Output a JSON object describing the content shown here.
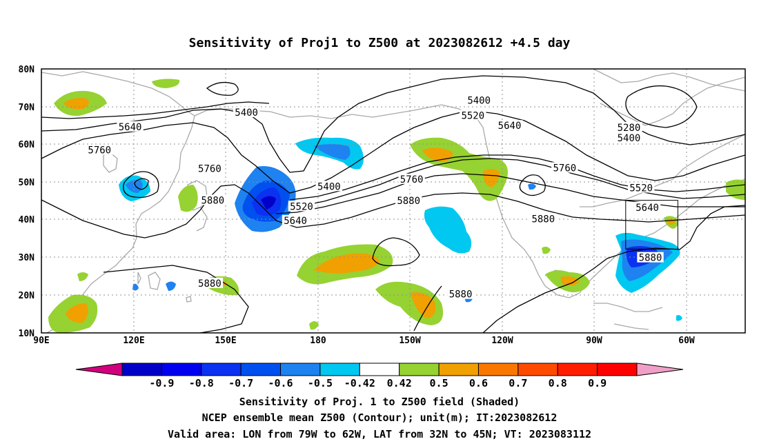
{
  "title": "Sensitivity of Proj1 to Z500 at 2023082612 +4.5 day",
  "axes": {
    "lat_labels": [
      "80N",
      "70N",
      "60N",
      "50N",
      "40N",
      "30N",
      "20N",
      "10N"
    ],
    "lon_labels": [
      "90E",
      "120E",
      "150E",
      "180",
      "150W",
      "120W",
      "90W",
      "60W"
    ]
  },
  "contour_labels": [
    {
      "text": "5400",
      "lat": 71.5,
      "lon": 233
    },
    {
      "text": "5400",
      "lat": 68.3,
      "lon": 157
    },
    {
      "text": "5520",
      "lat": 67.5,
      "lon": 231
    },
    {
      "text": "5640",
      "lat": 64.5,
      "lon": 119
    },
    {
      "text": "5640",
      "lat": 64.8,
      "lon": 243
    },
    {
      "text": "5280",
      "lat": 64.3,
      "lon": 282
    },
    {
      "text": "5400",
      "lat": 61.5,
      "lon": 282
    },
    {
      "text": "5760",
      "lat": 58.3,
      "lon": 109
    },
    {
      "text": "5760",
      "lat": 53.4,
      "lon": 145
    },
    {
      "text": "5760",
      "lat": 53.6,
      "lon": 261
    },
    {
      "text": "5400",
      "lat": 48.7,
      "lon": 184
    },
    {
      "text": "5760",
      "lat": 50.6,
      "lon": 211
    },
    {
      "text": "5520",
      "lat": 48.3,
      "lon": 286
    },
    {
      "text": "5880",
      "lat": 45.0,
      "lon": 146
    },
    {
      "text": "5880",
      "lat": 44.9,
      "lon": 210
    },
    {
      "text": "5520",
      "lat": 43.4,
      "lon": 175
    },
    {
      "text": "5640",
      "lat": 43.1,
      "lon": 288
    },
    {
      "text": "5880",
      "lat": 40.1,
      "lon": 254
    },
    {
      "text": "5640",
      "lat": 39.6,
      "lon": 173
    },
    {
      "text": "5880",
      "lat": 29.8,
      "lon": 289
    },
    {
      "text": "5880",
      "lat": 23.0,
      "lon": 145
    },
    {
      "text": "5880",
      "lat": 20.1,
      "lon": 227
    }
  ],
  "colorbar": {
    "colors": [
      "#d2007d",
      "#0000c8",
      "#0000f0",
      "#0a32f0",
      "#0050f0",
      "#1e82f0",
      "#00c8f0",
      "#ffffff",
      "#96d232",
      "#f0a000",
      "#fa7800",
      "#ff4b00",
      "#ff1e00",
      "#ff0000",
      "#f0a0c8"
    ],
    "labels": [
      "-0.9",
      "-0.8",
      "-0.7",
      "-0.6",
      "-0.5",
      "-0.42",
      "0.42",
      "0.5",
      "0.6",
      "0.7",
      "0.8",
      "0.9"
    ]
  },
  "valid_area": {
    "lon": [
      -79,
      -62
    ],
    "lat": [
      32,
      45
    ]
  },
  "caption": {
    "line1": "Sensitivity of Proj. 1 to Z500 field (Shaded)",
    "line2": "NCEP ensemble mean Z500 (Contour); unit(m); IT:2023082612",
    "line3": "Valid area: LON from 79W to 62W, LAT from 32N to 45N; VT: 2023083112"
  }
}
